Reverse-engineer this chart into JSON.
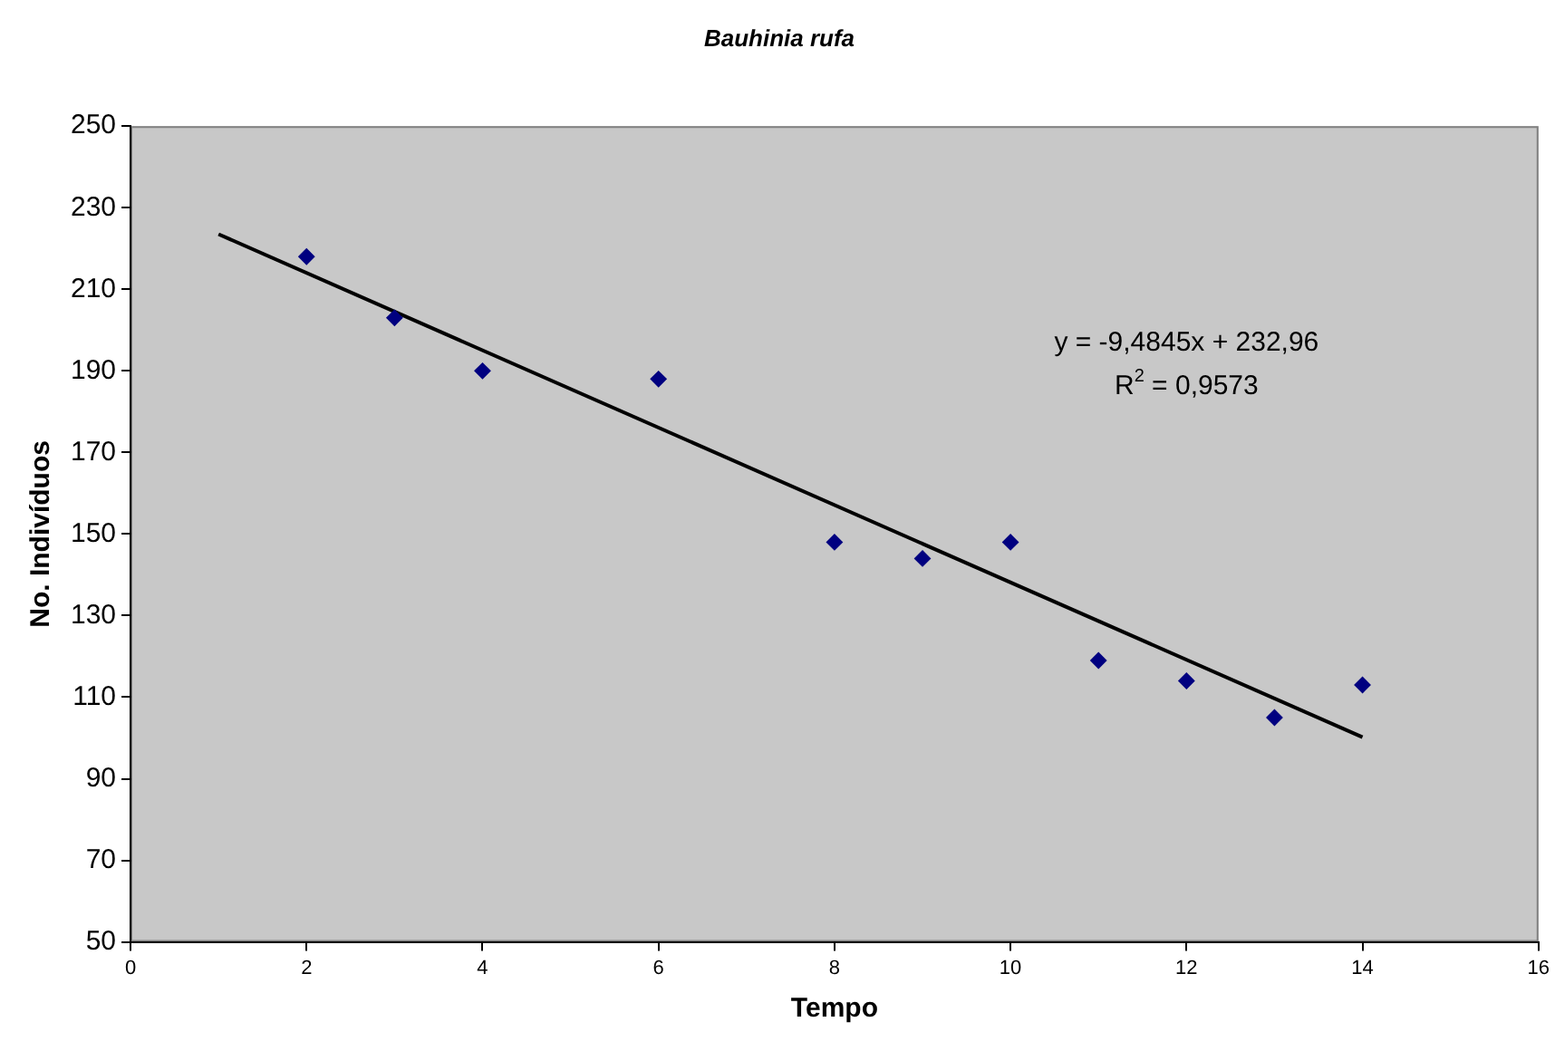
{
  "chart_data": {
    "type": "scatter",
    "title": "Bauhinia rufa",
    "xlabel": "Tempo",
    "ylabel": "No. Indivíduos",
    "series": [
      {
        "color": "#000080",
        "marker": "diamond",
        "x": [
          2,
          3,
          4,
          6,
          8,
          9,
          10,
          11,
          12,
          13,
          14
        ],
        "values": [
          218,
          203,
          190,
          188,
          148,
          144,
          148,
          119,
          114,
          105,
          113
        ]
      },
      {
        "type": "line",
        "color": "#000000",
        "x": [
          1,
          14
        ],
        "values": [
          223.5,
          100.2
        ]
      }
    ],
    "xlim": [
      0,
      16
    ],
    "xticks": [
      0,
      2,
      4,
      6,
      8,
      10,
      12,
      14,
      16
    ],
    "ylim": [
      50,
      250
    ],
    "yticks": [
      50,
      70,
      90,
      110,
      130,
      150,
      170,
      190,
      210,
      230,
      250
    ],
    "grid": false,
    "legend": false,
    "annotations": [
      "y = -9,4845x + 232,96",
      "R$^{2}$ = 0,9573"
    ]
  }
}
